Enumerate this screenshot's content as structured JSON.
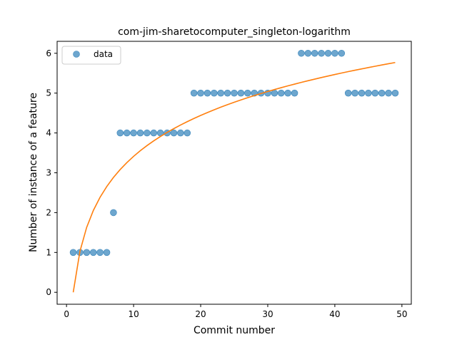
{
  "chart_data": {
    "type": "scatter",
    "title": "com-jim-sharetocomputer_singleton-logarithm",
    "xlabel": "Commit number",
    "ylabel": "Number of instance of a feature",
    "xlim": [
      -1.4,
      51.4
    ],
    "ylim": [
      -0.3,
      6.3
    ],
    "xticks": [
      0,
      10,
      20,
      30,
      40,
      50
    ],
    "yticks": [
      0,
      1,
      2,
      3,
      4,
      5,
      6
    ],
    "grid": false,
    "legend_position": "upper-left",
    "series": [
      {
        "name": "data",
        "kind": "scatter",
        "color": "#1f77b4",
        "x": [
          1,
          2,
          3,
          4,
          5,
          6,
          7,
          8,
          9,
          10,
          11,
          12,
          13,
          14,
          15,
          16,
          17,
          18,
          19,
          20,
          21,
          22,
          23,
          24,
          25,
          26,
          27,
          28,
          29,
          30,
          31,
          32,
          33,
          34,
          35,
          36,
          37,
          38,
          39,
          40,
          41,
          42,
          43,
          44,
          45,
          46,
          47,
          48,
          49
        ],
        "y": [
          1,
          1,
          1,
          1,
          1,
          1,
          2,
          4,
          4,
          4,
          4,
          4,
          4,
          4,
          4,
          4,
          4,
          4,
          5,
          5,
          5,
          5,
          5,
          5,
          5,
          5,
          5,
          5,
          5,
          5,
          5,
          5,
          5,
          5,
          6,
          6,
          6,
          6,
          6,
          6,
          6,
          5,
          5,
          5,
          5,
          5,
          5,
          5,
          5
        ]
      },
      {
        "kind": "line",
        "color": "#ff7f0e",
        "function": "1.482 * ln(x)",
        "x_range": [
          1,
          49
        ]
      }
    ]
  }
}
